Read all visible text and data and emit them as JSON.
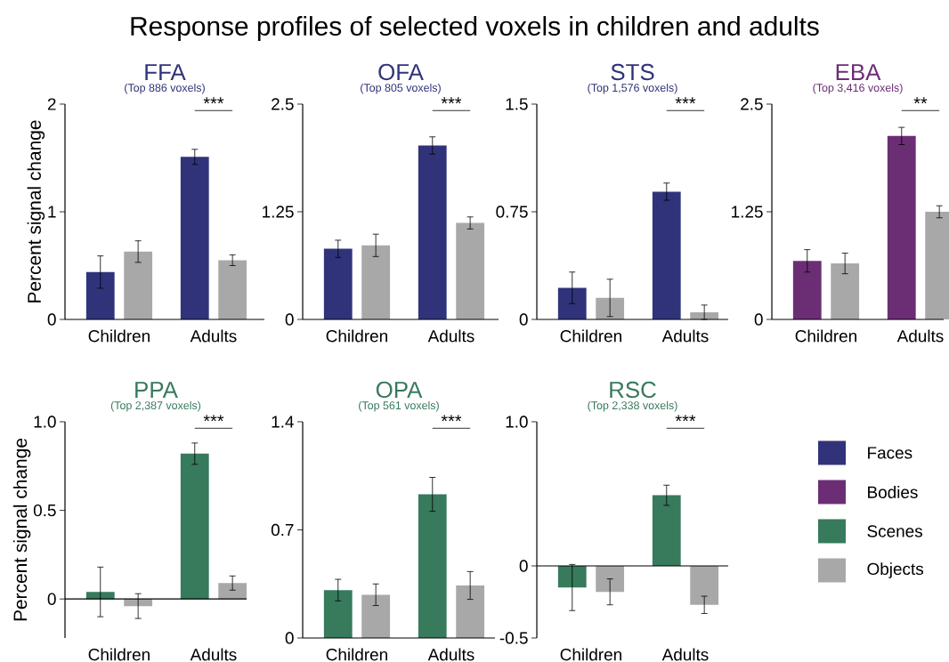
{
  "chart_data": [
    {
      "type": "other",
      "title": "Response profiles of selected voxels in children and adults",
      "categories": [
        "Faces",
        "Bodies",
        "Scenes",
        "Objects"
      ],
      "colors": [
        "#31337a",
        "#6b2e75",
        "#377a5c",
        "#a8a8a8"
      ]
    },
    {
      "type": "bar",
      "title": "FFA",
      "subtitle": "(Top 886 voxels)",
      "ylabel": "Percent signal change",
      "categories": [
        "Children",
        "Adults"
      ],
      "ylim": [
        0,
        2
      ],
      "yticks": [
        0,
        1,
        2
      ],
      "annotations": [
        "***"
      ],
      "series": [
        {
          "color": "#31337a",
          "values": [
            0.44,
            1.51
          ],
          "errors": [
            0.15,
            0.07
          ]
        },
        {
          "color": "#a8a8a8",
          "values": [
            0.63,
            0.55
          ],
          "errors": [
            0.1,
            0.05
          ]
        }
      ]
    },
    {
      "type": "bar",
      "title": "OFA",
      "subtitle": "(Top 805 voxels)",
      "categories": [
        "Children",
        "Adults"
      ],
      "ylim": [
        0,
        2.5
      ],
      "yticks": [
        0,
        1.25,
        2.5
      ],
      "annotations": [
        "***"
      ],
      "series": [
        {
          "color": "#31337a",
          "values": [
            0.82,
            2.02
          ],
          "errors": [
            0.1,
            0.1
          ]
        },
        {
          "color": "#a8a8a8",
          "values": [
            0.86,
            1.12
          ],
          "errors": [
            0.13,
            0.07
          ]
        }
      ]
    },
    {
      "type": "bar",
      "title": "STS",
      "subtitle": "(Top 1,576 voxels)",
      "categories": [
        "Children",
        "Adults"
      ],
      "ylim": [
        0,
        1.5
      ],
      "yticks": [
        0,
        0.75,
        1.5
      ],
      "annotations": [
        "***"
      ],
      "series": [
        {
          "color": "#31337a",
          "values": [
            0.22,
            0.89
          ],
          "errors": [
            0.11,
            0.06
          ]
        },
        {
          "color": "#a8a8a8",
          "values": [
            0.15,
            0.05
          ],
          "errors": [
            0.13,
            0.05
          ]
        }
      ]
    },
    {
      "type": "bar",
      "title": "EBA",
      "subtitle": "(Top 3,416 voxels)",
      "categories": [
        "Children",
        "Adults"
      ],
      "ylim": [
        0,
        2.5
      ],
      "yticks": [
        0,
        1.25,
        2.5
      ],
      "annotations": [
        "**"
      ],
      "series": [
        {
          "color": "#6b2e75",
          "values": [
            0.68,
            2.13
          ],
          "errors": [
            0.13,
            0.1
          ]
        },
        {
          "color": "#a8a8a8",
          "values": [
            0.65,
            1.25
          ],
          "errors": [
            0.12,
            0.07
          ]
        }
      ]
    },
    {
      "type": "bar",
      "title": "PPA",
      "subtitle": "(Top 2,387 voxels)",
      "ylabel": "Percent signal change",
      "categories": [
        "Children",
        "Adults"
      ],
      "ylim": [
        -0.22,
        1.0
      ],
      "yticks": [
        0,
        0.5,
        {
          "value": 1,
          "label": "1.0"
        }
      ],
      "annotations": [
        "***"
      ],
      "series": [
        {
          "color": "#377a5c",
          "values": [
            0.04,
            0.82
          ],
          "errors": [
            0.14,
            0.06
          ]
        },
        {
          "color": "#a8a8a8",
          "values": [
            -0.04,
            0.09
          ],
          "errors": [
            0.07,
            0.04
          ]
        }
      ]
    },
    {
      "type": "bar",
      "title": "OPA",
      "subtitle": "(Top 561 voxels)",
      "categories": [
        "Children",
        "Adults"
      ],
      "ylim": [
        0,
        1.4
      ],
      "yticks": [
        0,
        0.7,
        1.4
      ],
      "annotations": [
        "***"
      ],
      "series": [
        {
          "color": "#377a5c",
          "values": [
            0.31,
            0.93
          ],
          "errors": [
            0.07,
            0.11
          ]
        },
        {
          "color": "#a8a8a8",
          "values": [
            0.28,
            0.34
          ],
          "errors": [
            0.07,
            0.09
          ]
        }
      ]
    },
    {
      "type": "bar",
      "title": "RSC",
      "subtitle": "(Top 2,338 voxels)",
      "categories": [
        "Children",
        "Adults"
      ],
      "ylim": [
        -0.5,
        1.0
      ],
      "yticks": [
        -0.5,
        0,
        {
          "value": 1,
          "label": "1.0"
        }
      ],
      "annotations": [
        "***"
      ],
      "series": [
        {
          "color": "#377a5c",
          "values": [
            -0.15,
            0.49
          ],
          "errors": [
            0.16,
            0.07
          ]
        },
        {
          "color": "#a8a8a8",
          "values": [
            -0.18,
            -0.27
          ],
          "errors": [
            0.09,
            0.06
          ]
        }
      ]
    }
  ]
}
